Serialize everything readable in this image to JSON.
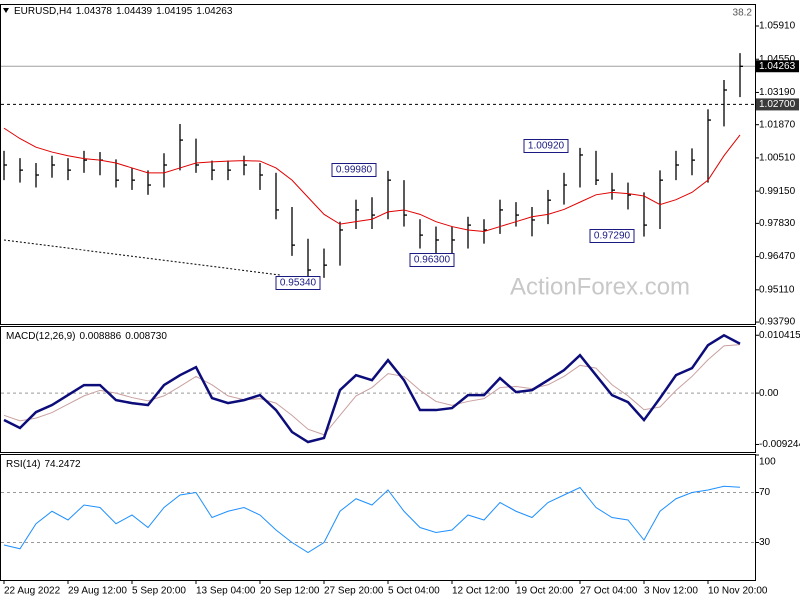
{
  "chart_data": [
    {
      "type": "ohlc",
      "title": "EURUSD,H4",
      "readout": [
        1.04378,
        1.04439,
        1.04195,
        1.04263
      ],
      "categories": [
        "22 Aug 2022",
        null,
        null,
        null,
        "29 Aug 12:00",
        null,
        null,
        null,
        "5 Sep 20:00",
        null,
        null,
        null,
        "13 Sep 04:00",
        null,
        null,
        null,
        "20 Sep 12:00",
        null,
        null,
        null,
        "27 Sep 20:00",
        null,
        null,
        null,
        "5 Oct 04:00",
        null,
        null,
        null,
        "12 Oct 12:00",
        null,
        null,
        null,
        "19 Oct 20:00",
        null,
        null,
        null,
        "27 Oct 04:00",
        null,
        null,
        null,
        "3 Nov 12:00",
        null,
        null,
        null,
        "10 Nov 20:00",
        null,
        null
      ],
      "high": [
        1.008,
        1.005,
        1.003,
        1.006,
        1.005,
        1.008,
        1.0075,
        1.0045,
        1.001,
        1.0,
        1.007,
        1.019,
        1.013,
        1.004,
        1.004,
        1.006,
        1.003,
        0.999,
        0.985,
        0.972,
        0.968,
        0.979,
        0.988,
        0.989,
        0.9998,
        0.996,
        0.98,
        0.977,
        0.977,
        0.981,
        0.98,
        0.988,
        0.987,
        0.985,
        0.992,
        0.999,
        1.0092,
        1.008,
        0.999,
        0.995,
        0.991,
        1.0,
        1.008,
        1.009,
        1.025,
        1.037,
        1.048
      ],
      "low": [
        0.996,
        0.995,
        0.993,
        0.997,
        0.996,
        0.999,
        0.998,
        0.993,
        0.992,
        0.99,
        0.993,
        1.0,
        0.999,
        0.996,
        0.996,
        0.998,
        0.992,
        0.98,
        0.965,
        0.9534,
        0.956,
        0.961,
        0.976,
        0.976,
        0.98,
        0.977,
        0.968,
        0.964,
        0.963,
        0.968,
        0.97,
        0.974,
        0.977,
        0.973,
        0.978,
        0.986,
        0.993,
        0.994,
        0.988,
        0.984,
        0.9729,
        0.976,
        0.996,
        0.998,
        0.995,
        1.018,
        1.03
      ],
      "close": [
        1.0022,
        1.0001,
        0.9981,
        1.0022,
        1.0001,
        1.0042,
        1.0042,
        0.996,
        0.996,
        0.994,
        1.0022,
        1.0124,
        1.0022,
        1.0001,
        1.0001,
        1.0022,
        0.9981,
        0.9838,
        0.9694,
        0.9592,
        0.9612,
        0.9756,
        0.9838,
        0.9817,
        0.996,
        0.9817,
        0.9735,
        0.9715,
        0.9715,
        0.9776,
        0.9756,
        0.9838,
        0.9817,
        0.9797,
        0.9878,
        0.994,
        1.0063,
        0.996,
        0.9919,
        0.9899,
        0.9776,
        0.996,
        1.0022,
        1.0042,
        1.0206,
        1.0329,
        1.0426
      ],
      "color": "#000000",
      "ma_values": [
        1.0173,
        1.013,
        1.0095,
        1.0075,
        1.006,
        1.0048,
        1.0042,
        1.003,
        1.001,
        0.999,
        0.999,
        1.001,
        1.003,
        1.0035,
        1.0038,
        1.004,
        1.0038,
        1.001,
        0.996,
        0.989,
        0.982,
        0.978,
        0.979,
        0.98,
        0.983,
        0.9838,
        0.982,
        0.979,
        0.977,
        0.9756,
        0.975,
        0.977,
        0.979,
        0.981,
        0.982,
        0.984,
        0.987,
        0.99,
        0.991,
        0.9905,
        0.9895,
        0.986,
        0.988,
        0.991,
        0.996,
        1.006,
        1.0145
      ],
      "ma_color": "#e00000",
      "ylim": [
        0.9367,
        1.0677
      ],
      "yticks": [
        {
          "value": 1.0591,
          "label": "1.05910"
        },
        {
          "value": 1.0455,
          "label": "1.04550"
        },
        {
          "value": 1.0319,
          "label": "1.03190"
        },
        {
          "value": 1.0187,
          "label": "1.01870"
        },
        {
          "value": 1.0051,
          "label": "1.00510"
        },
        {
          "value": 0.9915,
          "label": "0.99150"
        },
        {
          "value": 0.9783,
          "label": "0.97830"
        },
        {
          "value": 0.9647,
          "label": "0.96470"
        },
        {
          "value": 0.9511,
          "label": "0.95110"
        },
        {
          "value": 0.9379,
          "label": "0.93790"
        }
      ],
      "support_level": {
        "value": 1.027,
        "label": "1.02700"
      },
      "last_price": 1.04263,
      "fib_label": 38.2,
      "annotations": [
        "0.99980",
        "0.95340",
        "0.96300",
        "1.00920",
        "0.97290"
      ],
      "watermark": "ActionForex.com"
    },
    {
      "type": "macd",
      "title": "MACD(12,26,9)",
      "readout": [
        0.008886,
        {
          "value": 0.00873,
          "label": "0.008730"
        }
      ],
      "series": [
        {
          "color": "#0c0c7a",
          "values": [
            -0.00485,
            -0.00628,
            -0.00341,
            -0.00215,
            -0.00036,
            0.00144,
            0.00144,
            -0.00126,
            -0.0018,
            -0.00215,
            0.00144,
            0.00323,
            0.00467,
            -0.0009,
            -0.0018,
            -0.00126,
            -0.00036,
            -0.00305,
            -0.007,
            -0.0088,
            -0.00808,
            0.00054,
            0.00323,
            0.00233,
            0.00593,
            0.00233,
            -0.00305,
            -0.00305,
            -0.00269,
            -0.00036,
            -0.00036,
            0.00269,
            0.00018,
            0.00054,
            0.00233,
            0.00413,
            0.00682,
            0.00323,
            -0.00036,
            -0.00162,
            -0.00485,
            -0.0009,
            0.00323,
            0.00449,
            0.00862,
            0.01041,
            0.008886
          ]
        },
        {
          "color": "#c9a0a0",
          "values": [
            -0.004,
            -0.005,
            -0.0045,
            -0.0035,
            -0.002,
            -0.0005,
            0.0005,
            0,
            -0.0008,
            -0.0014,
            -0.0005,
            0.0012,
            0.003,
            0.0015,
            -0.0005,
            -0.0012,
            -0.001,
            -0.0018,
            -0.004,
            -0.0065,
            -0.0075,
            -0.004,
            -0.0005,
            0.001,
            0.0035,
            0.003,
            0.0005,
            -0.0015,
            -0.0022,
            -0.0015,
            -0.001,
            0.001,
            0.0012,
            0.0008,
            0.0015,
            0.003,
            0.005,
            0.0045,
            0.0015,
            -0.0005,
            -0.003,
            -0.0025,
            0.0005,
            0.003,
            0.006,
            0.0085,
            0.00873
          ]
        }
      ],
      "ylim": [
        -0.0106,
        0.0119
      ],
      "yticks": [
        0.010415,
        {
          "value": 0,
          "label": "0.00"
        },
        -0.009244
      ]
    },
    {
      "type": "line",
      "title": "RSI(14)",
      "readout": [
        74.2472
      ],
      "values": [
        28,
        25,
        45,
        55,
        48,
        60,
        58,
        45,
        52,
        42,
        58,
        68,
        70,
        50,
        55,
        58,
        52,
        40,
        30,
        22,
        30,
        55,
        65,
        60,
        72,
        55,
        42,
        38,
        40,
        52,
        48,
        62,
        55,
        50,
        62,
        68,
        74,
        58,
        50,
        48,
        32,
        55,
        65,
        70,
        72,
        75,
        74.2472
      ],
      "color": "#1e90ff",
      "ylim": [
        0,
        100
      ],
      "yticks": [
        100,
        70,
        30
      ],
      "levels": [
        70,
        30
      ]
    }
  ]
}
